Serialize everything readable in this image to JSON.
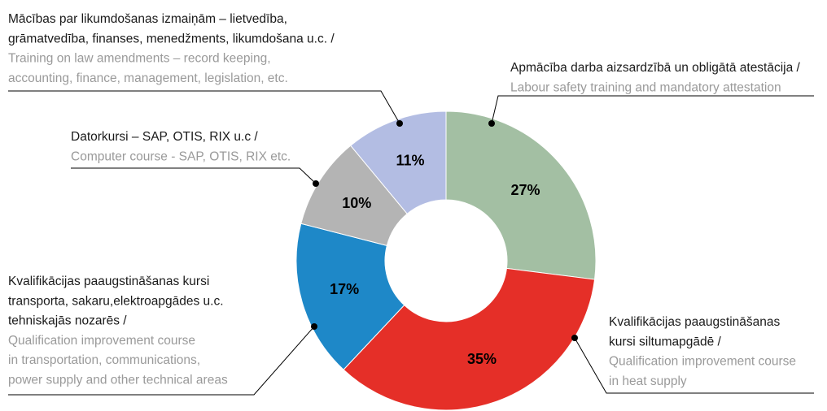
{
  "chart_data": {
    "type": "donut",
    "categories": [
      {
        "lv": [
          "Apmācība darba aizsardzībā un obligātā atestācija /"
        ],
        "en": [
          "Labour safety training and mandatory attestation"
        ]
      },
      {
        "lv": [
          "Kvalifikācijas paaugstināšanas",
          "kursi siltumapgādē /"
        ],
        "en": [
          "Qualification improvement course",
          "in heat supply"
        ]
      },
      {
        "lv": [
          "Kvalifikācijas paaugstināšanas kursi",
          "transporta, sakaru,elektroapgādes u.c.",
          "tehniskajās nozarēs /"
        ],
        "en": [
          "Qualification improvement course",
          "in transportation, communications,",
          "power supply and other technical areas"
        ]
      },
      {
        "lv": [
          "Datorkursi – SAP, OTIS, RIX u.c /"
        ],
        "en": [
          "Computer course - SAP, OTIS, RIX etc."
        ]
      },
      {
        "lv": [
          "Mācības par likumdošanas izmaiņām – lietvedība,",
          "grāmatvedība, finanses, menedžments, likumdošana u.c. /"
        ],
        "en": [
          "Training on law amendments – record keeping,",
          "accounting, finance, management, legislation, etc."
        ]
      }
    ],
    "values": [
      27,
      35,
      17,
      10,
      11
    ],
    "value_labels": [
      "27%",
      "35%",
      "17%",
      "10%",
      "11%"
    ],
    "colors": [
      "#a3bfa3",
      "#e52f28",
      "#1e88c8",
      "#b4b4b4",
      "#b3bde3"
    ]
  }
}
